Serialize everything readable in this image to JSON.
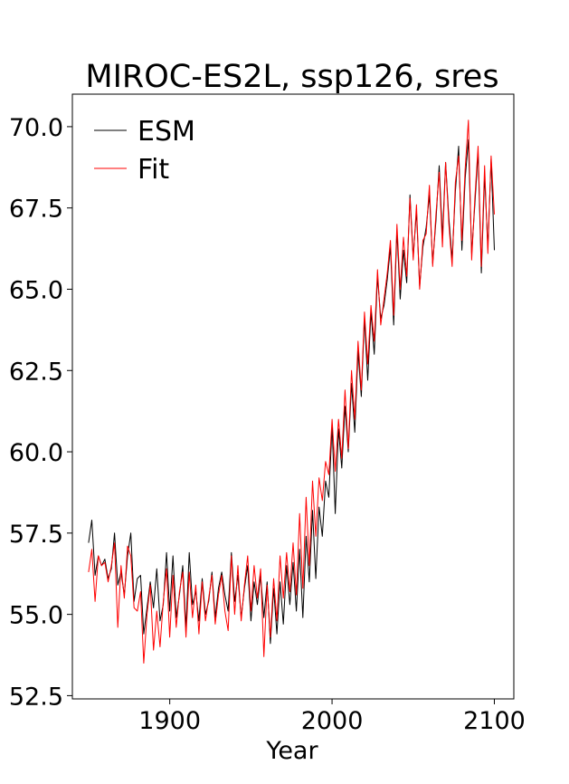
{
  "chart_data": {
    "type": "line",
    "title": "MIROC-ES2L, ssp126, sres",
    "xlabel": "Year",
    "ylabel": "",
    "xlim": [
      1840,
      2112
    ],
    "ylim": [
      52.4,
      71.0
    ],
    "xticks": [
      1900,
      2000,
      2100
    ],
    "xtick_labels": [
      "1900",
      "2000",
      "2100"
    ],
    "yticks": [
      52.5,
      55.0,
      57.5,
      60.0,
      62.5,
      65.0,
      67.5,
      70.0
    ],
    "ytick_labels": [
      "52.5",
      "55.0",
      "57.5",
      "60.0",
      "62.5",
      "65.0",
      "67.5",
      "70.0"
    ],
    "grid": false,
    "legend": "top-left",
    "series": [
      {
        "name": "ESM",
        "color": "#000000",
        "x": [
          1850,
          1852,
          1854,
          1856,
          1858,
          1860,
          1862,
          1864,
          1866,
          1868,
          1870,
          1872,
          1874,
          1876,
          1878,
          1880,
          1882,
          1884,
          1886,
          1888,
          1890,
          1892,
          1894,
          1896,
          1898,
          1900,
          1902,
          1904,
          1906,
          1908,
          1910,
          1912,
          1914,
          1916,
          1918,
          1920,
          1922,
          1924,
          1926,
          1928,
          1930,
          1932,
          1934,
          1936,
          1938,
          1940,
          1942,
          1944,
          1946,
          1948,
          1950,
          1952,
          1954,
          1956,
          1958,
          1960,
          1962,
          1964,
          1966,
          1968,
          1970,
          1972,
          1974,
          1976,
          1978,
          1980,
          1982,
          1984,
          1986,
          1988,
          1990,
          1992,
          1994,
          1996,
          1998,
          2000,
          2002,
          2004,
          2006,
          2008,
          2010,
          2012,
          2014,
          2016,
          2018,
          2020,
          2022,
          2024,
          2026,
          2028,
          2030,
          2032,
          2034,
          2036,
          2038,
          2040,
          2042,
          2044,
          2046,
          2048,
          2050,
          2052,
          2054,
          2056,
          2058,
          2060,
          2062,
          2064,
          2066,
          2068,
          2070,
          2072,
          2074,
          2076,
          2078,
          2080,
          2082,
          2084,
          2086,
          2088,
          2090,
          2092,
          2094,
          2096,
          2098,
          2100
        ],
        "values": [
          57.2,
          57.9,
          56.2,
          56.8,
          56.5,
          56.7,
          56.1,
          56.4,
          57.5,
          55.9,
          56.3,
          55.6,
          56.8,
          57.5,
          55.4,
          56.1,
          56.2,
          54.4,
          55.2,
          56.0,
          55.2,
          56.4,
          54.8,
          55.3,
          56.9,
          55.1,
          56.8,
          54.9,
          55.6,
          56.5,
          54.6,
          56.9,
          55.3,
          55.7,
          54.8,
          56.1,
          55.0,
          55.4,
          56.3,
          54.9,
          55.8,
          56.3,
          55.6,
          55.1,
          56.9,
          55.4,
          56.2,
          54.9,
          55.8,
          56.5,
          54.8,
          56.0,
          55.3,
          56.2,
          54.9,
          56.0,
          54.1,
          55.8,
          54.4,
          56.0,
          54.7,
          56.5,
          55.3,
          56.6,
          55.1,
          57.0,
          54.9,
          57.4,
          56.0,
          58.2,
          56.1,
          58.3,
          57.4,
          59.1,
          58.6,
          60.8,
          58.1,
          60.7,
          59.5,
          61.4,
          60.0,
          62.1,
          60.6,
          63.1,
          61.7,
          64.1,
          62.2,
          64.3,
          63.0,
          65.4,
          64.1,
          64.5,
          65.3,
          66.3,
          63.9,
          66.8,
          64.7,
          66.2,
          65.2,
          67.9,
          66.0,
          67.4,
          65.1,
          66.3,
          66.9,
          67.9,
          65.8,
          67.1,
          68.8,
          66.6,
          68.9,
          67.2,
          65.9,
          68.0,
          69.4,
          66.2,
          68.4,
          69.6,
          66.1,
          67.6,
          69.2,
          65.5,
          68.5,
          66.3,
          69.0,
          66.2
        ]
      },
      {
        "name": "Fit",
        "color": "#ff0000",
        "x": [
          1850,
          1852,
          1854,
          1856,
          1858,
          1860,
          1862,
          1864,
          1866,
          1868,
          1870,
          1872,
          1874,
          1876,
          1878,
          1880,
          1882,
          1884,
          1886,
          1888,
          1890,
          1892,
          1894,
          1896,
          1898,
          1900,
          1902,
          1904,
          1906,
          1908,
          1910,
          1912,
          1914,
          1916,
          1918,
          1920,
          1922,
          1924,
          1926,
          1928,
          1930,
          1932,
          1934,
          1936,
          1938,
          1940,
          1942,
          1944,
          1946,
          1948,
          1950,
          1952,
          1954,
          1956,
          1958,
          1960,
          1962,
          1964,
          1966,
          1968,
          1970,
          1972,
          1974,
          1976,
          1978,
          1980,
          1982,
          1984,
          1986,
          1988,
          1990,
          1992,
          1994,
          1996,
          1998,
          2000,
          2002,
          2004,
          2006,
          2008,
          2010,
          2012,
          2014,
          2016,
          2018,
          2020,
          2022,
          2024,
          2026,
          2028,
          2030,
          2032,
          2034,
          2036,
          2038,
          2040,
          2042,
          2044,
          2046,
          2048,
          2050,
          2052,
          2054,
          2056,
          2058,
          2060,
          2062,
          2064,
          2066,
          2068,
          2070,
          2072,
          2074,
          2076,
          2078,
          2080,
          2082,
          2084,
          2086,
          2088,
          2090,
          2092,
          2094,
          2096,
          2098,
          2100
        ],
        "values": [
          56.3,
          57.0,
          55.4,
          56.8,
          56.5,
          56.6,
          56.0,
          56.5,
          57.2,
          54.6,
          56.5,
          55.5,
          57.1,
          56.8,
          55.2,
          55.1,
          55.7,
          53.5,
          55.0,
          55.9,
          53.9,
          55.1,
          54.0,
          55.4,
          56.4,
          54.3,
          56.2,
          54.6,
          55.7,
          56.3,
          54.3,
          56.3,
          54.9,
          55.9,
          54.4,
          56.0,
          54.8,
          55.5,
          56.2,
          54.7,
          55.6,
          56.2,
          55.1,
          54.5,
          56.8,
          55.0,
          56.5,
          54.8,
          55.9,
          56.8,
          55.1,
          56.5,
          55.5,
          56.4,
          53.7,
          55.9,
          54.3,
          56.1,
          54.8,
          56.8,
          55.5,
          56.9,
          55.7,
          57.2,
          55.6,
          58.1,
          55.8,
          58.6,
          56.5,
          59.1,
          57.4,
          59.2,
          58.5,
          59.7,
          59.3,
          61.0,
          59.4,
          61.0,
          59.8,
          61.9,
          60.1,
          62.5,
          61.0,
          63.4,
          61.9,
          64.3,
          62.7,
          64.5,
          63.4,
          65.6,
          63.9,
          64.7,
          65.5,
          66.5,
          64.2,
          67.0,
          65.0,
          66.6,
          65.4,
          67.8,
          65.9,
          67.6,
          65.0,
          66.5,
          66.7,
          68.2,
          65.7,
          67.3,
          68.6,
          66.3,
          68.9,
          67.0,
          65.7,
          68.3,
          69.1,
          66.5,
          68.7,
          70.2,
          65.9,
          67.8,
          69.4,
          65.7,
          68.8,
          66.1,
          69.1,
          67.3
        ]
      }
    ]
  }
}
